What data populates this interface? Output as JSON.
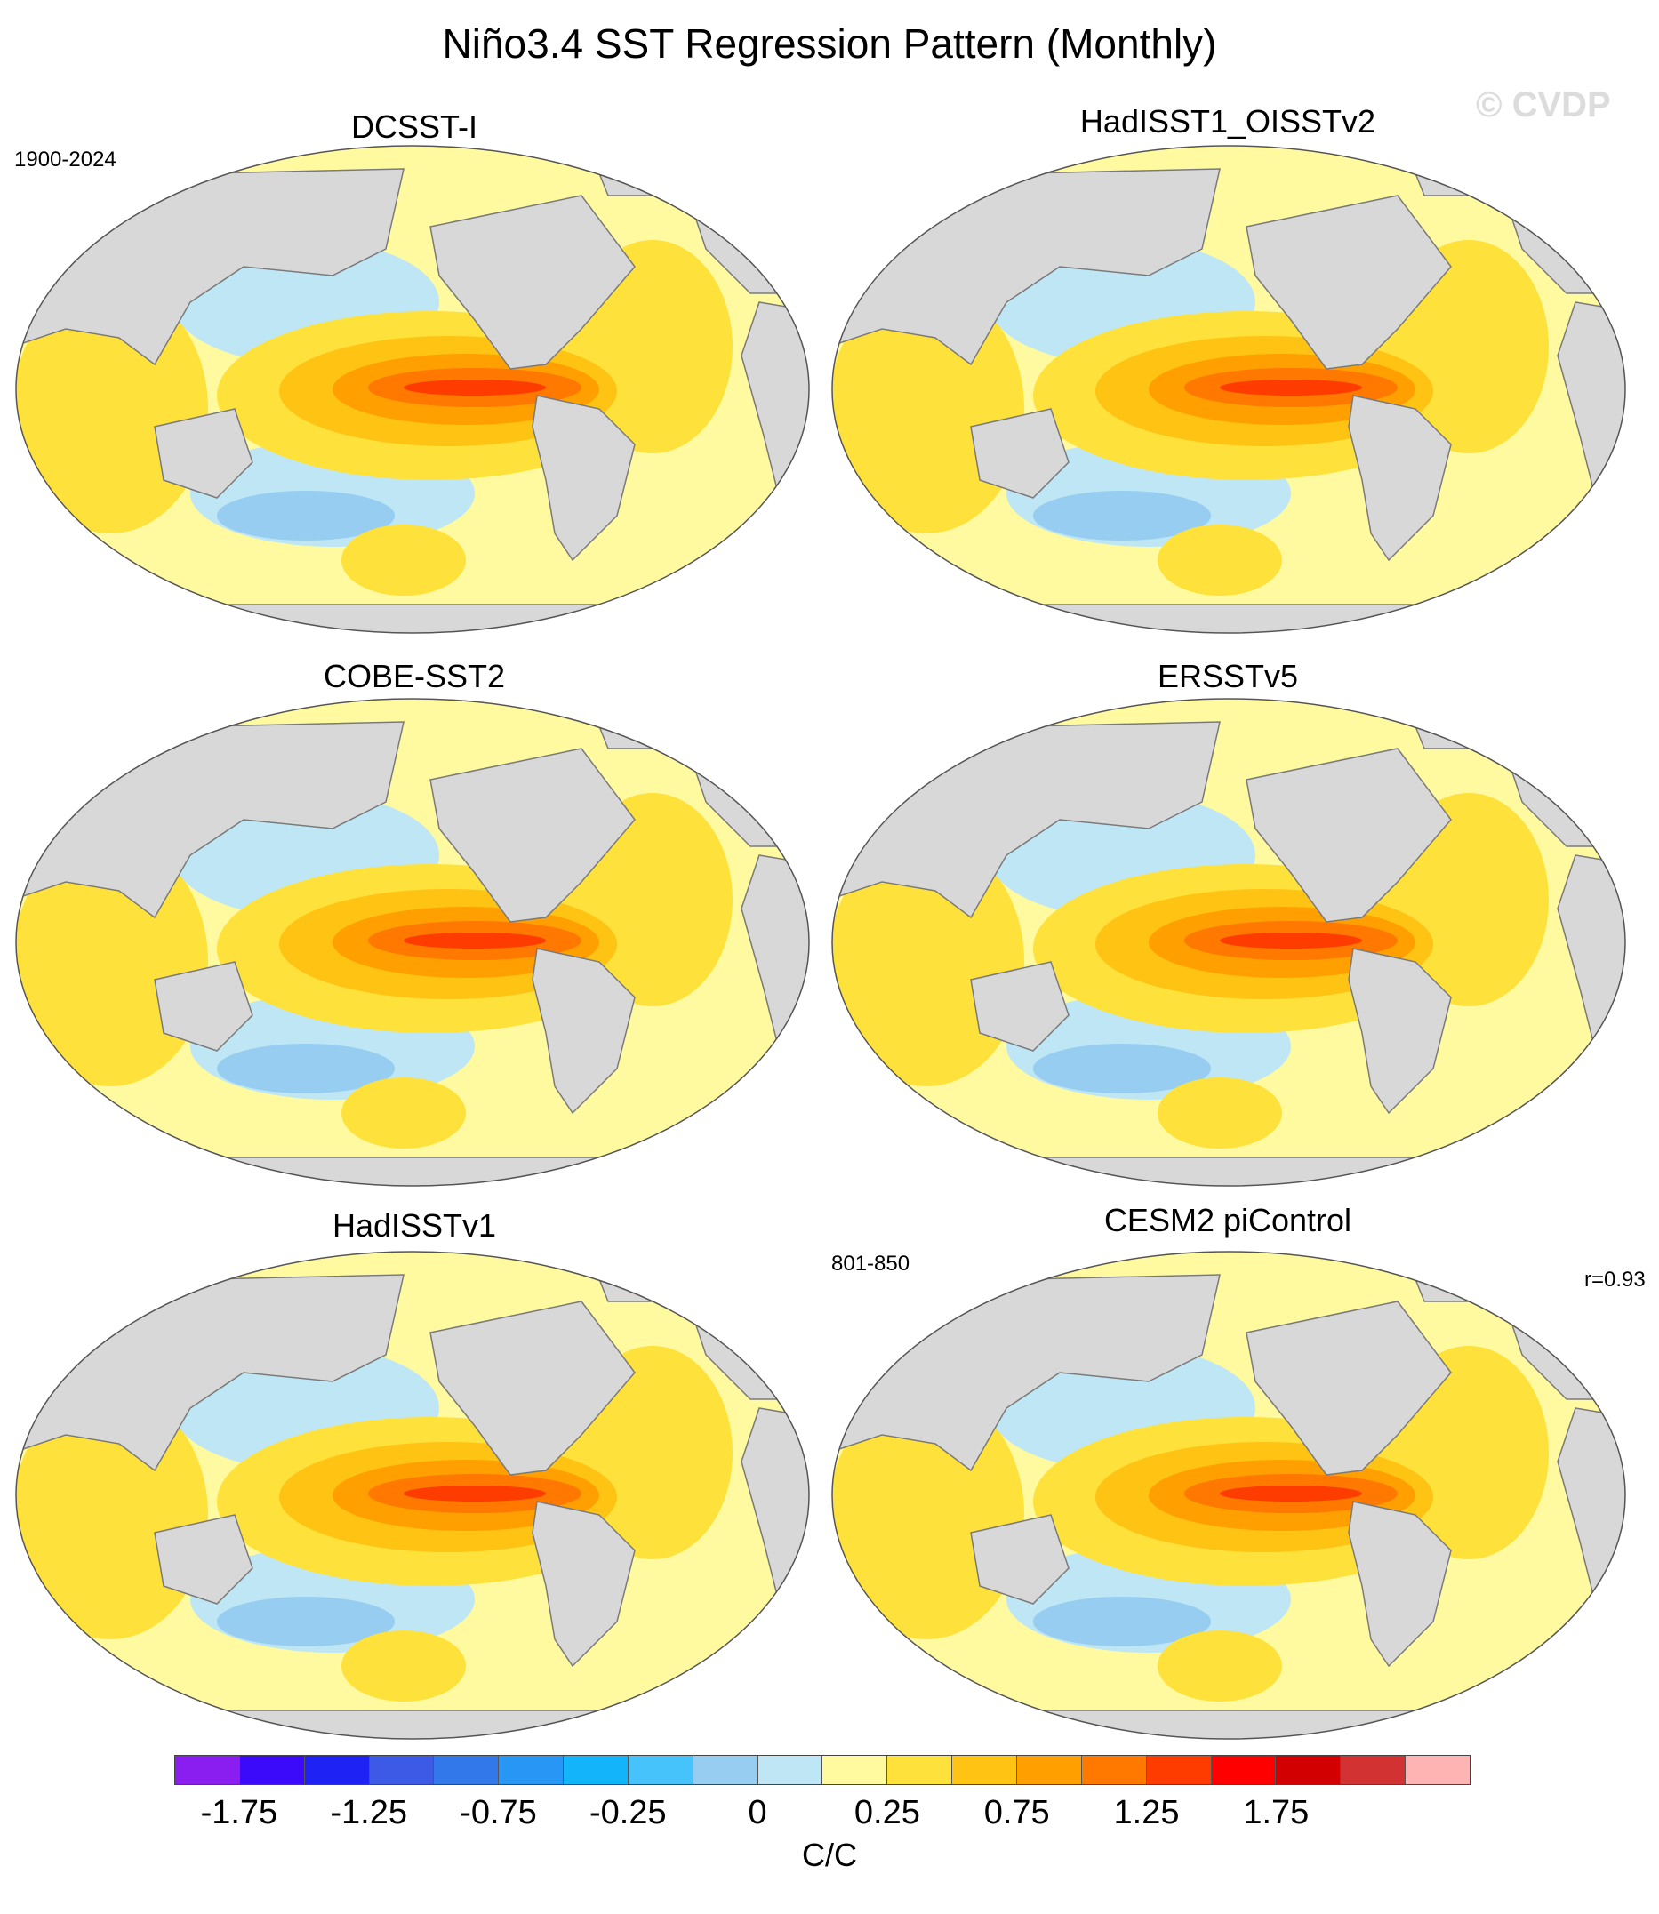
{
  "title": "Niño3.4 SST Regression Pattern (Monthly)",
  "watermark": "© CVDP",
  "panels": [
    {
      "name": "DCSST-I",
      "period": "1900-2024",
      "stat": ""
    },
    {
      "name": "HadISST1_OISSTv2",
      "period": "",
      "stat": ""
    },
    {
      "name": "COBE-SST2",
      "period": "",
      "stat": ""
    },
    {
      "name": "ERSSTv5",
      "period": "",
      "stat": ""
    },
    {
      "name": "HadISSTv1",
      "period": "",
      "stat": ""
    },
    {
      "name": "CESM2 piControl",
      "period": "801-850",
      "stat": "r=0.93"
    }
  ],
  "colorbar": {
    "colors": [
      "#8a1ef0",
      "#3c0afa",
      "#1e22f5",
      "#3c5ae6",
      "#3278eb",
      "#2896f5",
      "#14b4fa",
      "#46c3fa",
      "#96cdf0",
      "#bee6f5",
      "#fffaa0",
      "#ffe13c",
      "#ffc314",
      "#ffa000",
      "#ff7800",
      "#ff3c00",
      "#ff0000",
      "#d20000",
      "#d23232",
      "#ffb4b4"
    ],
    "tick_labels": [
      "-1.75",
      "-1.25",
      "-0.75",
      "-0.25",
      "0",
      "0.25",
      "0.75",
      "1.25",
      "1.75"
    ],
    "unit": "C/C"
  }
}
